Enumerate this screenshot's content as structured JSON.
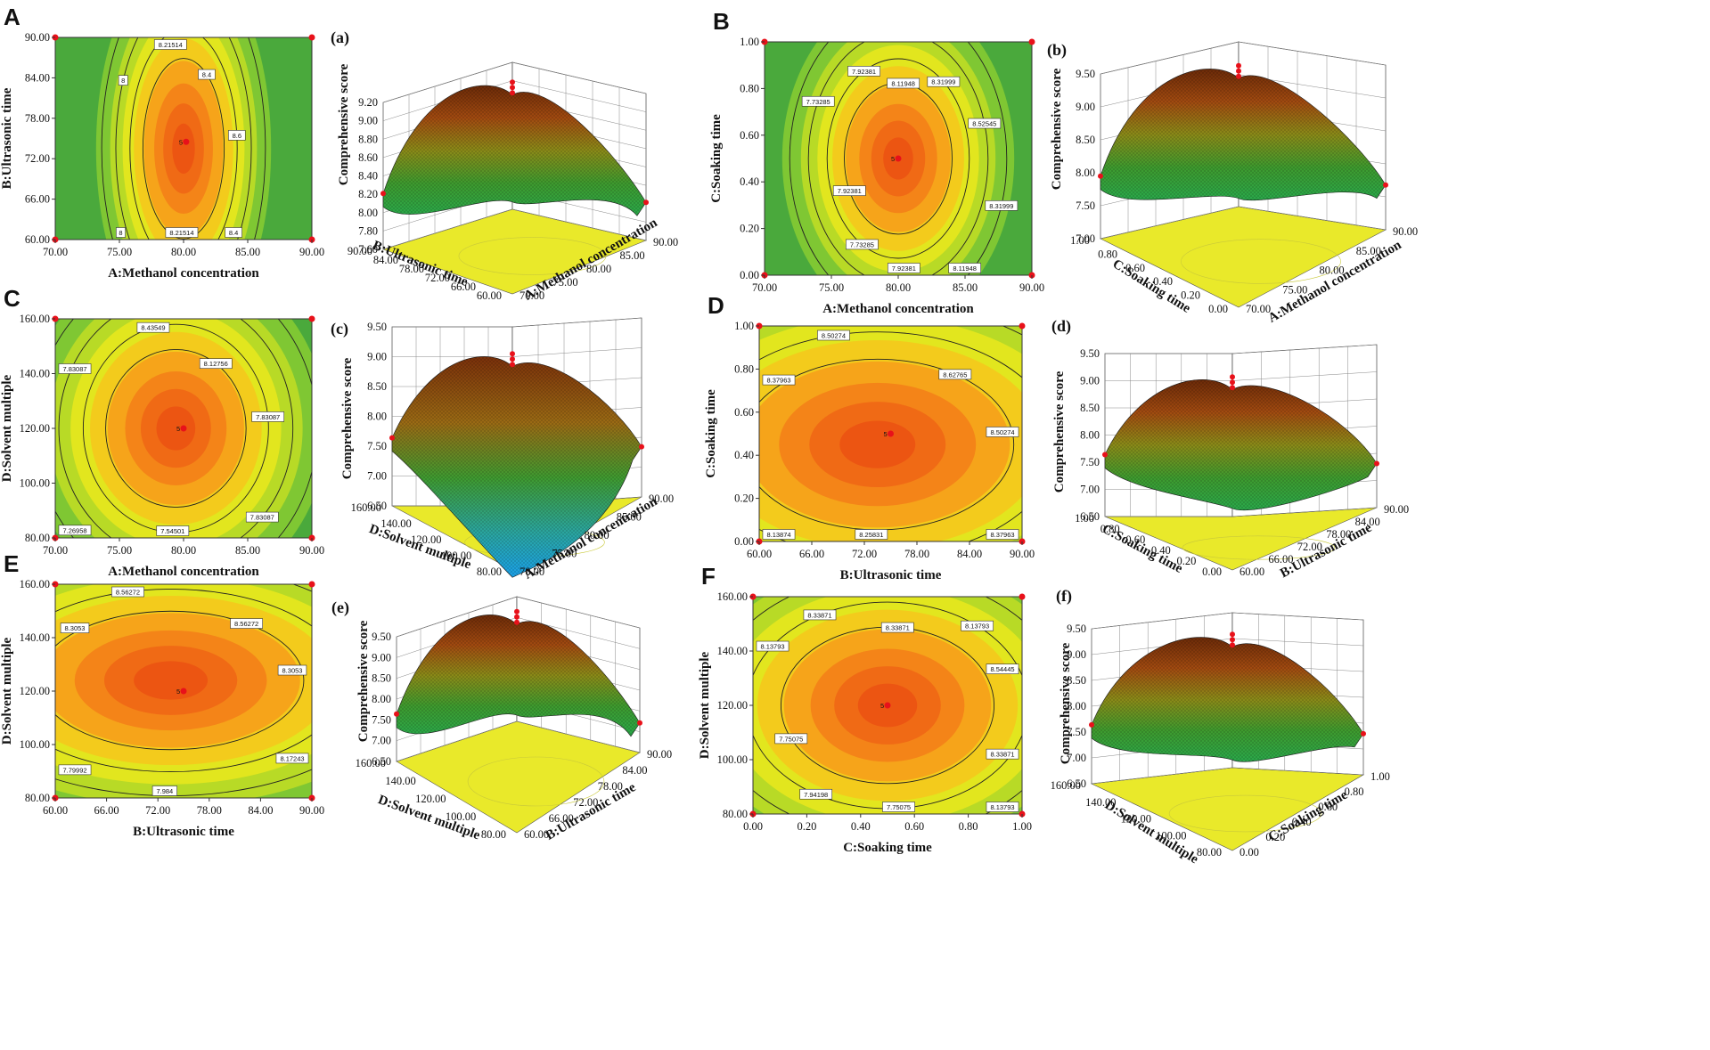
{
  "figure_title": "",
  "colors": {
    "low": "#2f9d3c",
    "mid": "#e5e600",
    "high": "#ee5a16",
    "floor": "#e9e92a",
    "point": "#e8111a"
  },
  "chart_data": [
    {
      "id": "A",
      "type": "contour",
      "panel_label": "A",
      "xlabel": "A:Methanol concentration",
      "ylabel": "B:Ultrasonic time",
      "x_ticks": [
        "70.00",
        "75.00",
        "80.00",
        "85.00",
        "90.00"
      ],
      "y_ticks": [
        "60.00",
        "66.00",
        "72.00",
        "78.00",
        "84.00",
        "90.00"
      ],
      "xlim": [
        70,
        90
      ],
      "ylim": [
        60,
        90
      ],
      "optimum": [
        80.2,
        74.5
      ],
      "optimum_label": "5",
      "contour_labels": [
        "8",
        "8.21514",
        "8.4",
        "8.6",
        "8.4",
        "8.21514",
        "8"
      ]
    },
    {
      "id": "a",
      "type": "surface3d",
      "panel_label": "(a)",
      "zlabel": "Comprehensive score",
      "x_axis_label": "B:Ultrasonic time",
      "y_axis_label": "A:Methanol concentration",
      "z_ticks": [
        "7.60",
        "7.80",
        "8.00",
        "8.20",
        "8.40",
        "8.60",
        "8.80",
        "9.00",
        "9.20"
      ],
      "x_ticks": [
        "60.00",
        "66.00",
        "72.00",
        "78.00",
        "84.00",
        "90.00"
      ],
      "y_ticks": [
        "70.00",
        "75.00",
        "80.00",
        "85.00",
        "90.00"
      ]
    },
    {
      "id": "B",
      "type": "contour",
      "panel_label": "B",
      "xlabel": "A:Methanol concentration",
      "ylabel": "C:Soaking time",
      "x_ticks": [
        "70.00",
        "75.00",
        "80.00",
        "85.00",
        "90.00"
      ],
      "y_ticks": [
        "0.00",
        "0.20",
        "0.40",
        "0.60",
        "0.80",
        "1.00"
      ],
      "xlim": [
        70,
        90
      ],
      "ylim": [
        0,
        1
      ],
      "optimum": [
        80,
        0.5
      ],
      "optimum_label": "5",
      "contour_labels": [
        "7.73285",
        "7.92381",
        "8.11948",
        "8.31999",
        "8.52545",
        "8.31999",
        "8.11948",
        "7.92381",
        "7.73285",
        "7.92381"
      ]
    },
    {
      "id": "b",
      "type": "surface3d",
      "panel_label": "(b)",
      "zlabel": "Comprehensive score",
      "x_axis_label": "C:Soaking time",
      "y_axis_label": "A:Methanol concentration",
      "z_ticks": [
        "7.00",
        "7.50",
        "8.00",
        "8.50",
        "9.00",
        "9.50"
      ],
      "x_ticks": [
        "0.00",
        "0.20",
        "0.40",
        "0.60",
        "0.80",
        "1.00"
      ],
      "y_ticks": [
        "70.00",
        "75.00",
        "80.00",
        "85.00",
        "90.00"
      ]
    },
    {
      "id": "C",
      "type": "contour",
      "panel_label": "C",
      "xlabel": "A:Methanol concentration",
      "ylabel": "D:Solvent multiple",
      "x_ticks": [
        "70.00",
        "75.00",
        "80.00",
        "85.00",
        "90.00"
      ],
      "y_ticks": [
        "80.00",
        "100.00",
        "120.00",
        "140.00",
        "160.00"
      ],
      "xlim": [
        70,
        90
      ],
      "ylim": [
        80,
        160
      ],
      "optimum": [
        80,
        120
      ],
      "optimum_label": "5",
      "contour_labels": [
        "7.83087",
        "8.43549",
        "8.12756",
        "7.83087",
        "7.83087",
        "7.54501",
        "7.26958"
      ]
    },
    {
      "id": "c",
      "type": "surface3d",
      "panel_label": "(c)",
      "zlabel": "Comprehensive score",
      "x_axis_label": "D:Solvent multiple",
      "y_axis_label": "A:Methanol concentration",
      "z_ticks": [
        "6.50",
        "7.00",
        "7.50",
        "8.00",
        "8.50",
        "9.00",
        "9.50"
      ],
      "x_ticks": [
        "80.00",
        "100.00",
        "120.00",
        "140.00",
        "160.00"
      ],
      "y_ticks": [
        "70.00",
        "75.00",
        "80.00",
        "85.00",
        "90.00"
      ]
    },
    {
      "id": "D",
      "type": "contour",
      "panel_label": "D",
      "xlabel": "B:Ultrasonic time",
      "ylabel": "C:Soaking time",
      "x_ticks": [
        "60.00",
        "66.00",
        "72.00",
        "78.00",
        "84.00",
        "90.00"
      ],
      "y_ticks": [
        "0.00",
        "0.20",
        "0.40",
        "0.60",
        "0.80",
        "1.00"
      ],
      "xlim": [
        60,
        90
      ],
      "ylim": [
        0,
        1
      ],
      "optimum": [
        75,
        0.5
      ],
      "optimum_label": "5",
      "contour_labels": [
        "8.37963",
        "8.50274",
        "8.62765",
        "8.50274",
        "8.37963",
        "8.25831",
        "8.13874"
      ]
    },
    {
      "id": "d",
      "type": "surface3d",
      "panel_label": "(d)",
      "zlabel": "Comprehensive score",
      "x_axis_label": "C:Soaking time",
      "y_axis_label": "B:Ultrasonic time",
      "z_ticks": [
        "6.50",
        "7.00",
        "7.50",
        "8.00",
        "8.50",
        "9.00",
        "9.50"
      ],
      "x_ticks": [
        "0.00",
        "0.20",
        "0.40",
        "0.60",
        "0.80",
        "1.00"
      ],
      "y_ticks": [
        "60.00",
        "66.00",
        "72.00",
        "78.00",
        "84.00",
        "90.00"
      ]
    },
    {
      "id": "E",
      "type": "contour",
      "panel_label": "E",
      "xlabel": "B:Ultrasonic time",
      "ylabel": "D:Solvent multiple",
      "x_ticks": [
        "60.00",
        "66.00",
        "72.00",
        "78.00",
        "84.00",
        "90.00"
      ],
      "y_ticks": [
        "80.00",
        "100.00",
        "120.00",
        "140.00",
        "160.00"
      ],
      "xlim": [
        60,
        90
      ],
      "ylim": [
        80,
        160
      ],
      "optimum": [
        75,
        120
      ],
      "optimum_label": "5",
      "contour_labels": [
        "8.3053",
        "8.56272",
        "8.56272",
        "8.3053",
        "8.17243",
        "7.984",
        "7.79992"
      ]
    },
    {
      "id": "e",
      "type": "surface3d",
      "panel_label": "(e)",
      "zlabel": "Comprehensive score",
      "x_axis_label": "D:Solvent multiple",
      "y_axis_label": "B:Ultrasonic time",
      "z_ticks": [
        "6.50",
        "7.00",
        "7.50",
        "8.00",
        "8.50",
        "9.00",
        "9.50"
      ],
      "x_ticks": [
        "80.00",
        "100.00",
        "120.00",
        "140.00",
        "160.00"
      ],
      "y_ticks": [
        "60.00",
        "66.00",
        "72.00",
        "78.00",
        "84.00",
        "90.00"
      ]
    },
    {
      "id": "F",
      "type": "contour",
      "panel_label": "F",
      "xlabel": "C:Soaking time",
      "ylabel": "D:Solvent multiple",
      "x_ticks": [
        "0.00",
        "0.20",
        "0.40",
        "0.60",
        "0.80",
        "1.00"
      ],
      "y_ticks": [
        "80.00",
        "100.00",
        "120.00",
        "140.00",
        "160.00"
      ],
      "xlim": [
        0,
        1
      ],
      "ylim": [
        80,
        160
      ],
      "optimum": [
        0.5,
        120
      ],
      "optimum_label": "5",
      "contour_labels": [
        "8.13793",
        "8.33871",
        "8.33871",
        "8.13793",
        "8.54445",
        "8.33871",
        "8.13793",
        "7.75075",
        "7.94198",
        "7.75075"
      ]
    },
    {
      "id": "f",
      "type": "surface3d",
      "panel_label": "(f)",
      "zlabel": "Comprehensive score",
      "x_axis_label": "D:Solvent multiple",
      "y_axis_label": "C:Soaking time",
      "z_ticks": [
        "6.50",
        "7.00",
        "7.50",
        "8.00",
        "8.50",
        "9.00",
        "9.50"
      ],
      "x_ticks": [
        "80.00",
        "100.00",
        "120.00",
        "140.00",
        "160.00"
      ],
      "y_ticks": [
        "0.00",
        "0.20",
        "0.40",
        "0.60",
        "0.80",
        "1.00"
      ]
    }
  ]
}
